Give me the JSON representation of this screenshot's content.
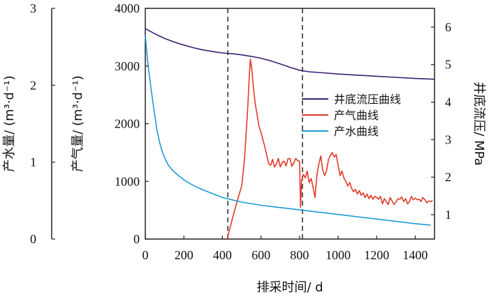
{
  "chart_data": {
    "type": "line",
    "xlabel": "排采时间/ d",
    "x_ticks": [
      "0",
      "200",
      "400",
      "600",
      "800",
      "1000",
      "1200",
      "1400"
    ],
    "xlim": [
      0,
      1500
    ],
    "y_gas": {
      "label": "产气量/ (m³·d⁻¹)",
      "ticks": [
        "0",
        "1000",
        "2000",
        "3000",
        "4000"
      ],
      "lim": [
        0,
        4000
      ]
    },
    "y_water": {
      "label": "产水量/ (m³·d⁻¹)",
      "ticks": [
        "0",
        "1",
        "2",
        "3"
      ],
      "lim": [
        0,
        3
      ]
    },
    "y_pressure": {
      "label": "井底流压/ MPa",
      "ticks": [
        "1",
        "2",
        "3",
        "4",
        "5",
        "6"
      ],
      "lim": [
        0.35,
        6.5
      ]
    },
    "reference_lines_x": [
      428,
      815
    ],
    "legend_position": "right",
    "series": [
      {
        "name": "井底流压曲线",
        "axis": "pressure",
        "color": "#3b1f73",
        "x": [
          0,
          50,
          100,
          150,
          200,
          250,
          300,
          350,
          400,
          450,
          500,
          550,
          600,
          650,
          700,
          750,
          800,
          850,
          900,
          1000,
          1100,
          1200,
          1300,
          1400,
          1500
        ],
        "y": [
          5.96,
          5.82,
          5.7,
          5.6,
          5.52,
          5.45,
          5.39,
          5.35,
          5.31,
          5.29,
          5.26,
          5.22,
          5.17,
          5.1,
          5.02,
          4.93,
          4.85,
          4.81,
          4.79,
          4.75,
          4.72,
          4.69,
          4.66,
          4.63,
          4.61
        ]
      },
      {
        "name": "产气曲线",
        "axis": "gas",
        "color": "#e03a2a",
        "x": [
          425,
          440,
          460,
          480,
          500,
          515,
          530,
          540,
          545,
          552,
          560,
          570,
          580,
          590,
          600,
          610,
          620,
          630,
          640,
          650,
          660,
          670,
          680,
          690,
          700,
          710,
          720,
          730,
          740,
          750,
          760,
          770,
          780,
          790,
          800,
          805,
          810,
          820,
          830,
          840,
          850,
          860,
          870,
          880,
          890,
          900,
          910,
          920,
          930,
          940,
          950,
          960,
          970,
          980,
          990,
          1000,
          1010,
          1020,
          1030,
          1040,
          1050,
          1060,
          1070,
          1080,
          1090,
          1100,
          1110,
          1120,
          1130,
          1140,
          1150,
          1160,
          1170,
          1180,
          1190,
          1200,
          1210,
          1220,
          1230,
          1240,
          1250,
          1260,
          1270,
          1280,
          1290,
          1300,
          1310,
          1320,
          1330,
          1340,
          1350,
          1360,
          1370,
          1380,
          1390,
          1400,
          1410,
          1420,
          1430,
          1440,
          1450,
          1460,
          1470,
          1480,
          1490
        ],
        "y": [
          0,
          200,
          460,
          700,
          920,
          1400,
          2200,
          2850,
          3120,
          2950,
          2650,
          2350,
          2150,
          1950,
          1850,
          1720,
          1600,
          1450,
          1310,
          1280,
          1380,
          1250,
          1300,
          1400,
          1250,
          1330,
          1350,
          1270,
          1390,
          1400,
          1260,
          1320,
          1400,
          1360,
          1350,
          550,
          1010,
          1120,
          1060,
          1180,
          980,
          1050,
          900,
          720,
          1100,
          1300,
          1440,
          1200,
          1100,
          1180,
          1380,
          1450,
          1500,
          1420,
          1470,
          1280,
          1100,
          1180,
          1060,
          1000,
          920,
          980,
          880,
          820,
          860,
          780,
          840,
          760,
          800,
          720,
          780,
          700,
          760,
          690,
          740,
          720,
          690,
          740,
          610,
          700,
          650,
          600,
          720,
          660,
          600,
          640,
          700,
          690,
          730,
          650,
          700,
          610,
          650,
          740,
          680,
          710,
          680,
          690,
          650,
          720,
          680,
          630,
          660,
          650,
          670
        ]
      },
      {
        "name": "产水曲线",
        "axis": "water",
        "color": "#1c9ad6",
        "x": [
          0,
          5,
          15,
          30,
          45,
          60,
          75,
          90,
          105,
          120,
          140,
          160,
          180,
          200,
          240,
          280,
          320,
          360,
          400,
          450,
          500,
          600,
          700,
          800,
          900,
          1000,
          1100,
          1200,
          1300,
          1400,
          1480
        ],
        "y": [
          2.65,
          2.5,
          2.25,
          1.95,
          1.68,
          1.42,
          1.25,
          1.12,
          1.03,
          0.96,
          0.9,
          0.85,
          0.81,
          0.77,
          0.71,
          0.66,
          0.62,
          0.58,
          0.54,
          0.51,
          0.48,
          0.44,
          0.41,
          0.38,
          0.35,
          0.32,
          0.29,
          0.26,
          0.23,
          0.2,
          0.18
        ]
      }
    ]
  }
}
